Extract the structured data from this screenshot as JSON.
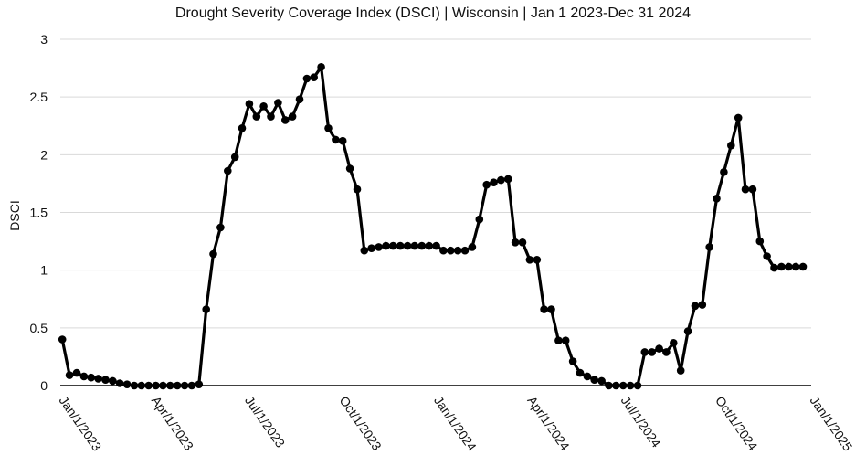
{
  "chart_data": {
    "type": "line",
    "title": "Drought Severity Coverage Index (DSCI) | Wisconsin | Jan 1 2023-Dec 31 2024",
    "xlabel": "",
    "ylabel": "DSCI",
    "ylim": [
      0,
      3
    ],
    "yticks": [
      "0",
      "0.5",
      "1",
      "1.5",
      "2",
      "2.5",
      "3"
    ],
    "xticks": [
      "Jan/1/2023",
      "Apr/1/2023",
      "Jul/1/2023",
      "Oct/1/2023",
      "Jan/1/2024",
      "Apr/1/2024",
      "Jul/1/2024",
      "Oct/1/2024",
      "Jan/1/2025"
    ],
    "grid": true,
    "line_color": "#000000",
    "series": [
      {
        "x_start": "2023-01-03",
        "interval": "weekly",
        "values": [
          0.4,
          0.09,
          0.11,
          0.08,
          0.07,
          0.06,
          0.05,
          0.04,
          0.02,
          0.01,
          0.0,
          0.0,
          0.0,
          0.0,
          0.0,
          0.0,
          0.0,
          0.0,
          0.0,
          0.01,
          0.66,
          1.14,
          1.37,
          1.86,
          1.98,
          2.23,
          2.44,
          2.33,
          2.42,
          2.33,
          2.45,
          2.3,
          2.33,
          2.48,
          2.66,
          2.67,
          2.76,
          2.23,
          2.13,
          2.12,
          1.88,
          1.7,
          1.17,
          1.19,
          1.2,
          1.21,
          1.21,
          1.21,
          1.21,
          1.21,
          1.21,
          1.21,
          1.21,
          1.17,
          1.17,
          1.17,
          1.17,
          1.2,
          1.44,
          1.74,
          1.76,
          1.78,
          1.79,
          1.24,
          1.24,
          1.09,
          1.09,
          0.66,
          0.66,
          0.39,
          0.39,
          0.21,
          0.11,
          0.08,
          0.05,
          0.04,
          0.0,
          0.0,
          0.0,
          0.0,
          0.0,
          0.29,
          0.29,
          0.32,
          0.29,
          0.37,
          0.13,
          0.47,
          0.69,
          0.7,
          1.2,
          1.62,
          1.85,
          2.08,
          2.32,
          1.7,
          1.7,
          1.25,
          1.12,
          1.02,
          1.03,
          1.03,
          1.03,
          1.03
        ]
      }
    ]
  }
}
